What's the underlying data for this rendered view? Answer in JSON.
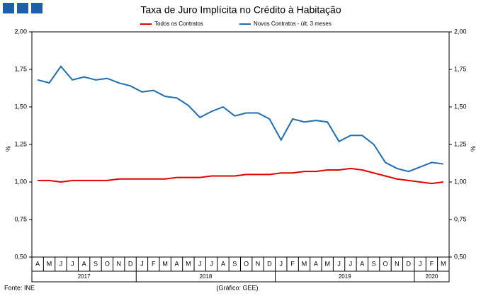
{
  "chart_data": {
    "type": "line",
    "title": "Taxa de Juro Implícita no Crédito à Habitação",
    "categories": [
      "A",
      "M",
      "J",
      "J",
      "A",
      "S",
      "O",
      "N",
      "D",
      "J",
      "F",
      "M",
      "A",
      "M",
      "J",
      "J",
      "A",
      "S",
      "O",
      "N",
      "D",
      "J",
      "F",
      "M",
      "A",
      "M",
      "J",
      "J",
      "A",
      "S",
      "O",
      "N",
      "D",
      "J",
      "F",
      "M"
    ],
    "years": [
      "2017",
      "2018",
      "2019",
      "2020"
    ],
    "series": [
      {
        "name": "Todos os Contratos",
        "color": "#e00000",
        "values": [
          1.01,
          1.01,
          1.0,
          1.01,
          1.01,
          1.01,
          1.01,
          1.02,
          1.02,
          1.02,
          1.02,
          1.02,
          1.03,
          1.03,
          1.03,
          1.04,
          1.04,
          1.04,
          1.05,
          1.05,
          1.05,
          1.06,
          1.06,
          1.07,
          1.07,
          1.08,
          1.08,
          1.09,
          1.08,
          1.06,
          1.04,
          1.02,
          1.01,
          1.0,
          0.99,
          1.0
        ]
      },
      {
        "name": "Novos Contratos - últ. 3 meses",
        "color": "#1f6db4",
        "values": [
          1.68,
          1.66,
          1.77,
          1.68,
          1.7,
          1.68,
          1.69,
          1.66,
          1.64,
          1.6,
          1.61,
          1.57,
          1.56,
          1.51,
          1.43,
          1.47,
          1.5,
          1.44,
          1.46,
          1.46,
          1.42,
          1.28,
          1.42,
          1.4,
          1.41,
          1.4,
          1.27,
          1.31,
          1.31,
          1.25,
          1.13,
          1.09,
          1.07,
          1.1,
          1.13,
          1.12
        ]
      }
    ],
    "ylabel": "%",
    "y2label": "%",
    "ylim": [
      0.5,
      2.0
    ],
    "yticks": [
      {
        "value": 0.5,
        "label": "0,50"
      },
      {
        "value": 0.75,
        "label": "0,75"
      },
      {
        "value": 1.0,
        "label": "1,00"
      },
      {
        "value": 1.25,
        "label": "1,25"
      },
      {
        "value": 1.5,
        "label": "1,50"
      },
      {
        "value": 1.75,
        "label": "1,75"
      },
      {
        "value": 2.0,
        "label": "2,00"
      }
    ],
    "y2lim": [
      0.5,
      2.0
    ],
    "y2ticks": [
      {
        "value": 0.5,
        "label": "0,50"
      },
      {
        "value": 0.75,
        "label": "0,75"
      },
      {
        "value": 1.0,
        "label": "1,00"
      },
      {
        "value": 1.25,
        "label": "1,25"
      },
      {
        "value": 1.5,
        "label": "1,50"
      },
      {
        "value": 1.75,
        "label": "1,75"
      },
      {
        "value": 2.0,
        "label": "2,00"
      }
    ],
    "grid": false,
    "legend": "top",
    "source": "Fonte: INE",
    "credit": "(Gráfico: GEE)"
  }
}
